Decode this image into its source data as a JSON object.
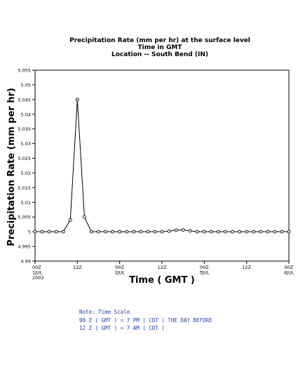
{
  "chart_data": {
    "type": "line",
    "title": "Precipitation Rate (mm per hr) at the surface level",
    "subtitle": "Time in GMT",
    "location": "Location -- South Bend (IN)",
    "xlabel": "Time ( GMT )",
    "ylabel": "Precipitation Rate (mm per hr)",
    "ylim": [
      4.99,
      5.055
    ],
    "yticks": [
      "4.99",
      "4.995",
      "5",
      "5.005",
      "5.01",
      "5.015",
      "5.02",
      "5.025",
      "5.03",
      "5.035",
      "5.04",
      "5.045",
      "5.05",
      "5.055"
    ],
    "xlim_hours": [
      0,
      72
    ],
    "xticks": [
      {
        "hour": 0,
        "lines": [
          "00Z",
          "1JUL",
          "2003"
        ]
      },
      {
        "hour": 12,
        "lines": [
          "12Z"
        ]
      },
      {
        "hour": 24,
        "lines": [
          "00Z",
          "2JUL"
        ]
      },
      {
        "hour": 36,
        "lines": [
          "12Z"
        ]
      },
      {
        "hour": 48,
        "lines": [
          "00Z",
          "3JUL"
        ]
      },
      {
        "hour": 60,
        "lines": [
          "12Z"
        ]
      },
      {
        "hour": 72,
        "lines": [
          "00Z",
          "4JUL"
        ]
      }
    ],
    "x_hours": [
      0,
      2,
      4,
      6,
      8,
      10,
      12,
      14,
      16,
      18,
      20,
      22,
      24,
      26,
      28,
      30,
      32,
      34,
      36,
      38,
      40,
      42,
      44,
      46,
      48,
      50,
      52,
      54,
      56,
      58,
      60,
      62,
      64,
      66,
      68,
      70,
      72
    ],
    "values": [
      5,
      5,
      5,
      5,
      5,
      5.004,
      5.045,
      5.005,
      5,
      5,
      5,
      5,
      5,
      5,
      5,
      5,
      5,
      5,
      5,
      5.0002,
      5.0005,
      5.0006,
      5.0003,
      5,
      5,
      5,
      5,
      5,
      5,
      5,
      5,
      5,
      5,
      5,
      5,
      5,
      5
    ],
    "grid": false,
    "line_color": "#000000"
  },
  "note": {
    "lines": [
      "Note: Time Scale",
      "00 Z ( GMT ) = 7 PM ( CDT ) THE DAY BEFORE",
      "12 Z ( GMT ) = 7 AM ( CDT )"
    ],
    "color": "#1f3fbf"
  }
}
